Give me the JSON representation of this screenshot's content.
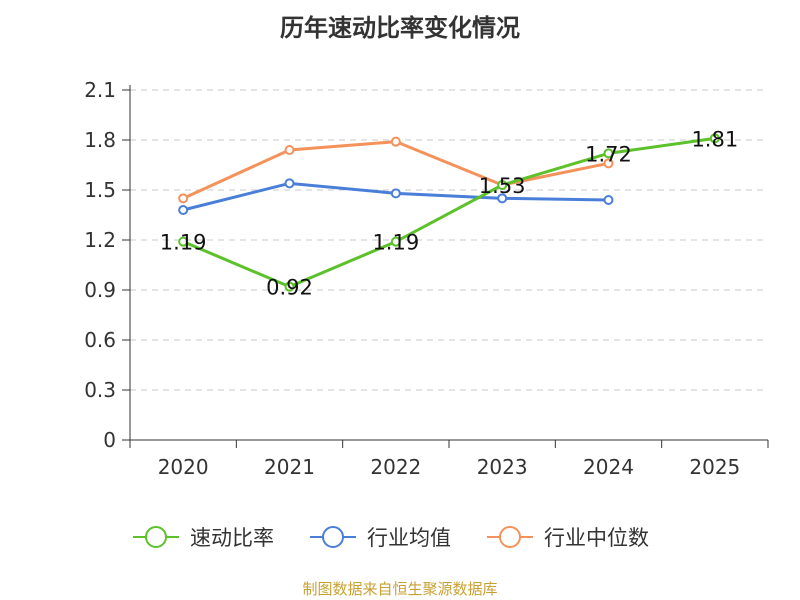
{
  "chart_data": {
    "type": "line",
    "title": "历年速动比率变化情况",
    "categories": [
      "2020",
      "2021",
      "2022",
      "2023",
      "2024",
      "2025"
    ],
    "y_ticks": [
      "0",
      "0.3",
      "0.6",
      "0.9",
      "1.2",
      "1.5",
      "1.8",
      "2.1"
    ],
    "ylim": [
      0,
      2.1
    ],
    "grid": true,
    "legend_position": "bottom",
    "series": [
      {
        "name": "速动比率",
        "color": "#5cc12a",
        "values": [
          1.19,
          0.92,
          1.19,
          1.53,
          1.72,
          1.81
        ],
        "labels": [
          "1.19",
          "0.92",
          "1.19",
          "1.53",
          "1.72",
          "1.81"
        ]
      },
      {
        "name": "行业均值",
        "color": "#4a7fd9",
        "values": [
          1.38,
          1.54,
          1.48,
          1.45,
          1.44,
          null
        ]
      },
      {
        "name": "行业中位数",
        "color": "#f5915a",
        "values": [
          1.45,
          1.74,
          1.79,
          1.53,
          1.66,
          null
        ]
      }
    ]
  },
  "footer": {
    "source": "制图数据来自恒生聚源数据库"
  }
}
